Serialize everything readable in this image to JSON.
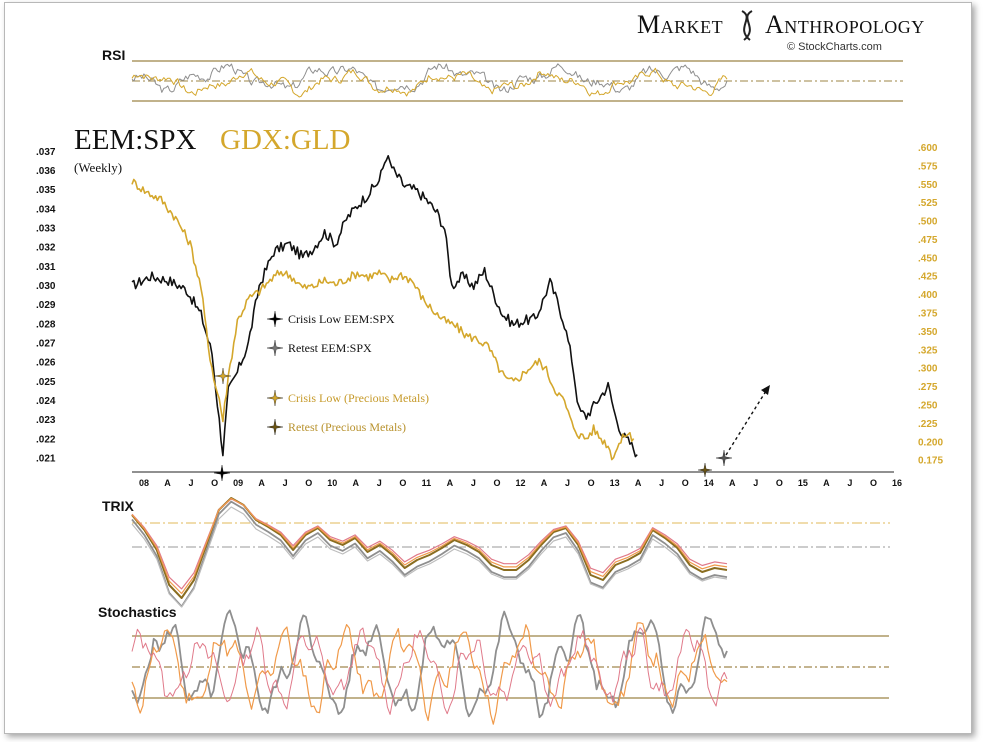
{
  "brand": {
    "name_left": "Market",
    "name_right": "Anthropology",
    "credit": "© StockCharts.com"
  },
  "colors": {
    "black_series": "#111111",
    "gold_series": "#d4a72c",
    "band": "#9c8446",
    "pink": "#e07a8a",
    "orange": "#f09a4a",
    "gray": "#8f8f8f"
  },
  "chart_data": {
    "type": "line",
    "title_primary": "EEM:SPX",
    "title_secondary": "GDX:GLD",
    "subtitle": "(Weekly)",
    "x_tick_labels": [
      "08",
      "A",
      "J",
      "O",
      "09",
      "A",
      "J",
      "O",
      "10",
      "A",
      "J",
      "O",
      "11",
      "A",
      "J",
      "O",
      "12",
      "A",
      "J",
      "O",
      "13",
      "A",
      "J",
      "O",
      "14",
      "A",
      "J",
      "O",
      "15",
      "A",
      "J",
      "O",
      "16"
    ],
    "left_axis": {
      "label": "EEM:SPX",
      "ylim": [
        0.0205,
        0.0372
      ],
      "ticks": [
        ".037",
        ".036",
        ".035",
        ".034",
        ".033",
        ".032",
        ".031",
        ".030",
        ".029",
        ".028",
        ".027",
        ".026",
        ".025",
        ".024",
        ".023",
        ".022",
        ".021"
      ]
    },
    "right_axis": {
      "label": "GDX:GLD",
      "ylim": [
        0.165,
        0.6
      ],
      "ticks": [
        ".600",
        ".575",
        ".550",
        ".525",
        ".500",
        ".475",
        ".450",
        ".425",
        ".400",
        ".375",
        ".350",
        ".325",
        ".300",
        ".275",
        ".250",
        ".225",
        "0.200",
        "0.175"
      ]
    },
    "series": [
      {
        "name": "EEM:SPX",
        "axis": "left",
        "color": "black",
        "points": [
          [
            0,
            0.03
          ],
          [
            10,
            0.0305
          ],
          [
            20,
            0.0303
          ],
          [
            30,
            0.0298
          ],
          [
            38,
            0.0285
          ],
          [
            44,
            0.0265
          ],
          [
            48,
            0.023
          ],
          [
            50,
            0.0213
          ],
          [
            53,
            0.0245
          ],
          [
            58,
            0.0255
          ],
          [
            64,
            0.027
          ],
          [
            70,
            0.03
          ],
          [
            78,
            0.0318
          ],
          [
            86,
            0.0322
          ],
          [
            94,
            0.0315
          ],
          [
            100,
            0.032
          ],
          [
            106,
            0.0328
          ],
          [
            112,
            0.0322
          ],
          [
            118,
            0.0335
          ],
          [
            124,
            0.0342
          ],
          [
            130,
            0.0348
          ],
          [
            136,
            0.0355
          ],
          [
            140,
            0.0368
          ],
          [
            144,
            0.036
          ],
          [
            150,
            0.0352
          ],
          [
            156,
            0.035
          ],
          [
            162,
            0.0345
          ],
          [
            168,
            0.0338
          ],
          [
            172,
            0.033
          ],
          [
            176,
            0.03
          ],
          [
            182,
            0.0305
          ],
          [
            188,
            0.03
          ],
          [
            194,
            0.0308
          ],
          [
            198,
            0.0298
          ],
          [
            204,
            0.0285
          ],
          [
            210,
            0.028
          ],
          [
            216,
            0.0282
          ],
          [
            222,
            0.0283
          ],
          [
            226,
            0.0292
          ],
          [
            230,
            0.0302
          ],
          [
            234,
            0.0292
          ],
          [
            238,
            0.028
          ],
          [
            242,
            0.0262
          ],
          [
            246,
            0.0235
          ],
          [
            250,
            0.0232
          ],
          [
            256,
            0.024
          ],
          [
            262,
            0.0248
          ],
          [
            266,
            0.0232
          ],
          [
            270,
            0.0222
          ],
          [
            274,
            0.0218
          ],
          [
            278,
            0.0212
          ]
        ]
      },
      {
        "name": "GDX:GLD",
        "axis": "right",
        "color": "gold",
        "points": [
          [
            0,
            0.555
          ],
          [
            8,
            0.54
          ],
          [
            16,
            0.53
          ],
          [
            24,
            0.505
          ],
          [
            32,
            0.47
          ],
          [
            38,
            0.41
          ],
          [
            42,
            0.33
          ],
          [
            46,
            0.275
          ],
          [
            48,
            0.26
          ],
          [
            50,
            0.23
          ],
          [
            53,
            0.29
          ],
          [
            58,
            0.365
          ],
          [
            64,
            0.395
          ],
          [
            70,
            0.405
          ],
          [
            76,
            0.42
          ],
          [
            82,
            0.432
          ],
          [
            88,
            0.425
          ],
          [
            94,
            0.41
          ],
          [
            100,
            0.412
          ],
          [
            106,
            0.42
          ],
          [
            112,
            0.415
          ],
          [
            118,
            0.422
          ],
          [
            124,
            0.43
          ],
          [
            130,
            0.425
          ],
          [
            136,
            0.43
          ],
          [
            142,
            0.42
          ],
          [
            148,
            0.428
          ],
          [
            154,
            0.42
          ],
          [
            160,
            0.395
          ],
          [
            166,
            0.378
          ],
          [
            172,
            0.365
          ],
          [
            178,
            0.358
          ],
          [
            184,
            0.345
          ],
          [
            190,
            0.34
          ],
          [
            196,
            0.33
          ],
          [
            202,
            0.3
          ],
          [
            206,
            0.285
          ],
          [
            210,
            0.282
          ],
          [
            214,
            0.29
          ],
          [
            218,
            0.3
          ],
          [
            224,
            0.31
          ],
          [
            228,
            0.298
          ],
          [
            232,
            0.275
          ],
          [
            238,
            0.255
          ],
          [
            242,
            0.225
          ],
          [
            246,
            0.21
          ],
          [
            250,
            0.205
          ],
          [
            254,
            0.218
          ],
          [
            258,
            0.205
          ],
          [
            262,
            0.196
          ],
          [
            264,
            0.18
          ],
          [
            268,
            0.197
          ],
          [
            272,
            0.213
          ],
          [
            276,
            0.205
          ]
        ]
      }
    ],
    "indicators": [
      {
        "name": "RSI",
        "bands": [
          80,
          50,
          20
        ],
        "series_colors": [
          "gray",
          "gold"
        ]
      },
      {
        "name": "TRIX",
        "lines": [
          "pink",
          "orange",
          "gray",
          "lightgray"
        ]
      },
      {
        "name": "Stochastics",
        "bands": [
          80,
          50,
          20
        ],
        "series_colors": [
          "gray",
          "orange",
          "pink"
        ]
      }
    ],
    "legend": [
      {
        "marker": "black-star",
        "text": "Crisis Low  EEM:SPX"
      },
      {
        "marker": "gray-star",
        "text": "Retest  EEM:SPX"
      },
      {
        "marker": "gold-star",
        "text": "Crisis Low  (Precious Metals)"
      },
      {
        "marker": "dark-gold-star",
        "text": "Retest (Precious Metals)"
      }
    ]
  }
}
